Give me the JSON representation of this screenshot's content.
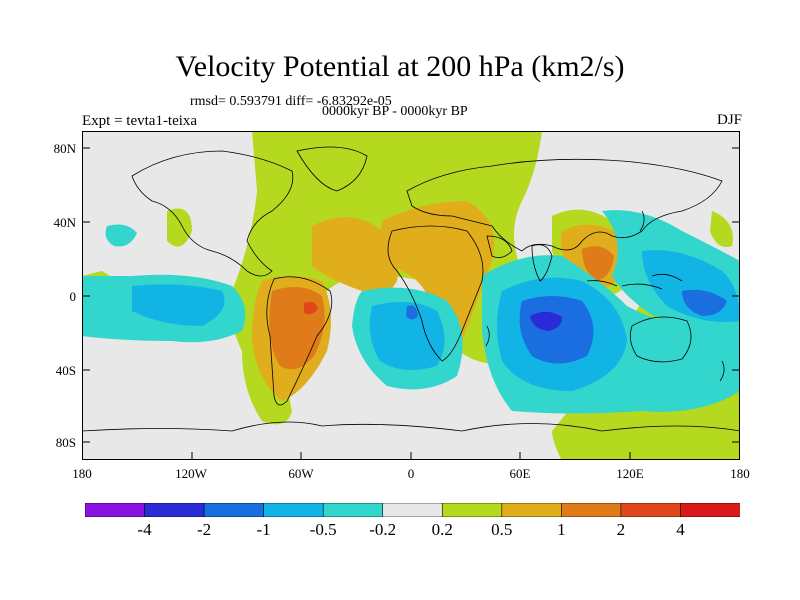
{
  "title": "Velocity Potential at 200 hPa (km2/s)",
  "subtitle_stats": "rmsd= 0.593791 diff= -6.83292e-05",
  "subtitle_period": "0000kyr BP - 0000kyr BP",
  "experiment": "Expt = tevta1-teixa",
  "season": "DJF",
  "yticks": [
    "80N",
    "40N",
    "0",
    "40S",
    "80S"
  ],
  "xticks": [
    "180",
    "120W",
    "60W",
    "0",
    "60E",
    "120E",
    "180"
  ],
  "colorbar": {
    "labels": [
      "-4",
      "-2",
      "-1",
      "-0.5",
      "-0.2",
      "0.2",
      "0.5",
      "1",
      "2",
      "4"
    ],
    "colors": [
      "#8a12e0",
      "#2a2ad6",
      "#1a6ee0",
      "#12b4e6",
      "#33d6cc",
      "#e8e8e8",
      "#b5d91f",
      "#e0ae1c",
      "#e07b1a",
      "#e0471a",
      "#d91a1a"
    ]
  },
  "chart_data": {
    "type": "contour-map",
    "variable": "Velocity Potential at 200 hPa",
    "units": "km2/s",
    "projection": "cylindrical-equidistant",
    "lon_range": [
      -180,
      180
    ],
    "lat_range": [
      -90,
      90
    ],
    "levels": [
      -4,
      -2,
      -1,
      -0.5,
      -0.2,
      0.2,
      0.5,
      1,
      2,
      4
    ],
    "features": [
      {
        "region": "tropical South America",
        "approx_value": "2 to 4"
      },
      {
        "region": "Africa / Arabia",
        "approx_value": "0.5 to 1"
      },
      {
        "region": "Southeast Asia",
        "approx_value": "1 to 2"
      },
      {
        "region": "central Indian Ocean",
        "approx_value": "-2 to -4"
      },
      {
        "region": "South Atlantic",
        "approx_value": "-0.5 to -1"
      },
      {
        "region": "tropical West Pacific",
        "approx_value": "-0.5 to -2"
      },
      {
        "region": "eastern tropical Pacific",
        "approx_value": "-0.5 to -1"
      },
      {
        "region": "Arctic / North Atlantic",
        "approx_value": "0.2 to 0.5"
      }
    ]
  }
}
